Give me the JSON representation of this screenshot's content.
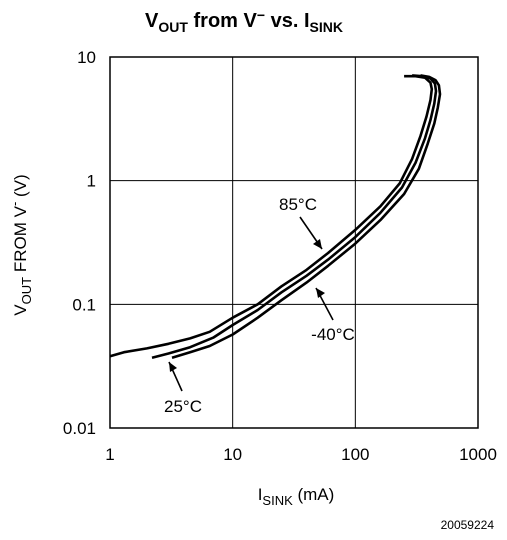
{
  "chart_data": {
    "type": "line",
    "title": {
      "main": "V",
      "sub1": "OUT",
      "mid": " from V",
      "sup": "−",
      "mid2": " vs. I",
      "sub2": "SINK"
    },
    "xlabel": {
      "main": "I",
      "sub": "SINK",
      "rest": " (mA)"
    },
    "ylabel": {
      "main": "V",
      "sub": "OUT",
      "rest": " FROM V",
      "sup": "-",
      "rest2": " (V)"
    },
    "x_scale": "log",
    "y_scale": "log",
    "xlim": [
      1,
      1000
    ],
    "ylim": [
      0.01,
      10
    ],
    "x_ticks": [
      {
        "v": 1,
        "label": "1"
      },
      {
        "v": 10,
        "label": "10"
      },
      {
        "v": 100,
        "label": "100"
      },
      {
        "v": 1000,
        "label": "1000"
      }
    ],
    "y_ticks": [
      {
        "v": 0.01,
        "label": "0.01"
      },
      {
        "v": 0.1,
        "label": "0.1"
      },
      {
        "v": 1,
        "label": "1"
      },
      {
        "v": 10,
        "label": "10"
      }
    ],
    "grid": true,
    "series": [
      {
        "name": "85°C",
        "points": [
          [
            1.0,
            0.038
          ],
          [
            1.3,
            0.041
          ],
          [
            2,
            0.044
          ],
          [
            3,
            0.048
          ],
          [
            4.5,
            0.053
          ],
          [
            6.5,
            0.06
          ],
          [
            10,
            0.078
          ],
          [
            16,
            0.1
          ],
          [
            25,
            0.14
          ],
          [
            40,
            0.19
          ],
          [
            60,
            0.26
          ],
          [
            100,
            0.4
          ],
          [
            160,
            0.62
          ],
          [
            230,
            0.95
          ],
          [
            290,
            1.5
          ],
          [
            340,
            2.3
          ],
          [
            380,
            3.3
          ],
          [
            410,
            4.5
          ],
          [
            420,
            5.5
          ],
          [
            410,
            6.2
          ],
          [
            370,
            6.8
          ],
          [
            310,
            7.0
          ],
          [
            250,
            7.0
          ]
        ]
      },
      {
        "name": "25°C",
        "points": [
          [
            2.2,
            0.037
          ],
          [
            3,
            0.04
          ],
          [
            4.5,
            0.045
          ],
          [
            7,
            0.054
          ],
          [
            10,
            0.068
          ],
          [
            16,
            0.09
          ],
          [
            25,
            0.125
          ],
          [
            40,
            0.17
          ],
          [
            60,
            0.23
          ],
          [
            100,
            0.35
          ],
          [
            160,
            0.55
          ],
          [
            240,
            0.88
          ],
          [
            310,
            1.4
          ],
          [
            370,
            2.2
          ],
          [
            410,
            3.1
          ],
          [
            440,
            4.2
          ],
          [
            455,
            5.3
          ],
          [
            445,
            6.1
          ],
          [
            410,
            6.7
          ],
          [
            350,
            7.0
          ],
          [
            290,
            7.1
          ]
        ]
      },
      {
        "name": "-40°C",
        "points": [
          [
            3.2,
            0.037
          ],
          [
            4.5,
            0.041
          ],
          [
            6.5,
            0.046
          ],
          [
            10,
            0.057
          ],
          [
            16,
            0.078
          ],
          [
            25,
            0.108
          ],
          [
            40,
            0.15
          ],
          [
            60,
            0.205
          ],
          [
            100,
            0.31
          ],
          [
            160,
            0.48
          ],
          [
            250,
            0.78
          ],
          [
            330,
            1.25
          ],
          [
            390,
            2.0
          ],
          [
            440,
            2.9
          ],
          [
            470,
            3.9
          ],
          [
            490,
            5.0
          ],
          [
            480,
            5.9
          ],
          [
            450,
            6.5
          ],
          [
            400,
            6.9
          ],
          [
            340,
            7.1
          ]
        ]
      }
    ],
    "annotations": [
      {
        "text": "85°C",
        "arrow_to": [
          52,
          0.225
        ]
      },
      {
        "text": "-40°C",
        "arrow_to": [
          47,
          0.17
        ]
      },
      {
        "text": "25°C",
        "arrow_to": [
          3.6,
          0.043
        ]
      }
    ]
  },
  "figure_number": "20059224"
}
